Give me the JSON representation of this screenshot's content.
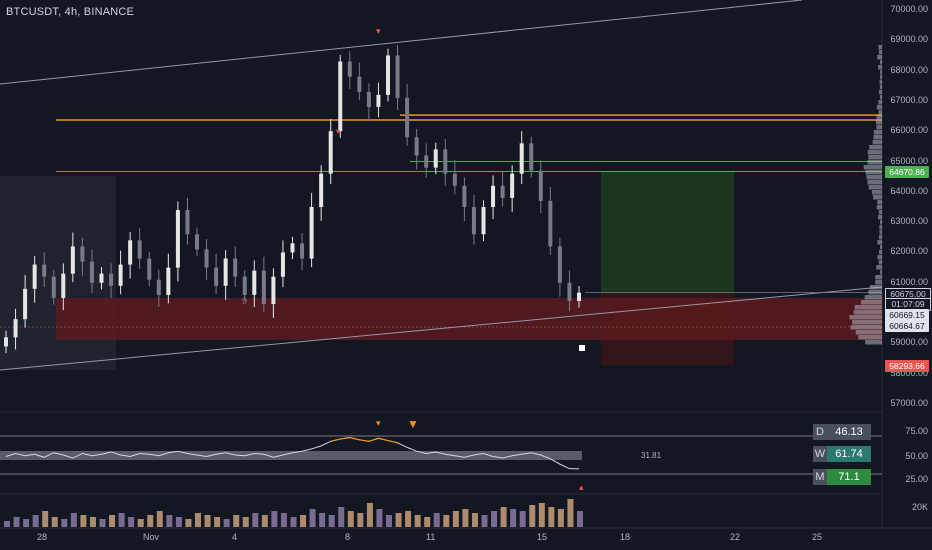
{
  "header": {
    "symbol_line": "BTCUSDT, 4h, BINANCE"
  },
  "price_axis": {
    "ticks": [
      "70000.00",
      "69000.00",
      "68000.00",
      "67000.00",
      "66000.00",
      "65000.00",
      "64000.00",
      "63000.00",
      "62000.00",
      "61000.00",
      "59000.00",
      "58000.00",
      "57000.00"
    ]
  },
  "tags": {
    "green_level": "64670.86",
    "current_price": "60675.00",
    "countdown": "01:07:09",
    "level_a": "60669.15",
    "level_b": "60664.67",
    "red_level": "58293.66"
  },
  "rsi_axis": {
    "ticks": [
      "75.00",
      "50.00",
      "25.00"
    ],
    "mid_label": "31.81"
  },
  "rsi_boxes": [
    {
      "key": "D",
      "value": "46.13",
      "color": "#4a4f5c"
    },
    {
      "key": "W",
      "value": "61.74",
      "color": "#2a7a6e"
    },
    {
      "key": "M",
      "value": "71.1",
      "color": "#2e8b3e"
    }
  ],
  "volume_axis": {
    "tick": "20K"
  },
  "time_axis": {
    "labels": [
      "28",
      "Nov",
      "4",
      "8",
      "11",
      "15",
      "18",
      "22",
      "25"
    ]
  },
  "markers": {
    "count_label": "9"
  },
  "colors": {
    "background": "#131722",
    "up_candle": "#e6e6e6",
    "down_candle": "#787b86",
    "orange_line": "#f7931a",
    "green_line": "#4caf50",
    "red_zone": "#5a1a1e",
    "green_zone": "#1e3a22",
    "rsi_line": "#cfd8dc"
  },
  "chart_data": {
    "type": "candlestick",
    "ylim": [
      56800,
      70200
    ],
    "orange_levels": [
      66370,
      66530
    ],
    "green_levels": [
      64670.86,
      65000
    ],
    "candles_close_path": [
      59200,
      59800,
      60800,
      61600,
      61200,
      60500,
      61300,
      62200,
      61700,
      61000,
      61300,
      60900,
      61600,
      62400,
      61800,
      61100,
      60600,
      61500,
      63400,
      62600,
      62100,
      61500,
      60900,
      61800,
      61200,
      60600,
      61400,
      60300,
      61200,
      62000,
      62300,
      61800,
      63500,
      64600,
      66000,
      68300,
      67800,
      67300,
      66800,
      67200,
      68500,
      67100,
      65800,
      65200,
      64800,
      65400,
      64600,
      64200,
      63500,
      62600,
      63500,
      64200,
      63800,
      64600,
      65600,
      64700,
      63700,
      62200,
      61000,
      60400,
      60675
    ],
    "volume_values": [
      3,
      5,
      4,
      6,
      8,
      5,
      4,
      7,
      6,
      5,
      4,
      6,
      7,
      5,
      4,
      6,
      8,
      6,
      5,
      4,
      7,
      6,
      5,
      4,
      6,
      5,
      7,
      6,
      8,
      7,
      5,
      6,
      9,
      7,
      6,
      10,
      8,
      7,
      12,
      9,
      6,
      7,
      8,
      6,
      5,
      7,
      6,
      8,
      9,
      7,
      6,
      8,
      10,
      9,
      8,
      11,
      12,
      10,
      9,
      14,
      8
    ],
    "rsi_values": [
      48,
      52,
      49,
      51,
      47,
      53,
      50,
      46,
      52,
      49,
      51,
      54,
      50,
      48,
      52,
      51,
      49,
      53,
      55,
      52,
      50,
      48,
      51,
      53,
      50,
      49,
      52,
      51,
      47,
      50,
      53,
      55,
      58,
      62,
      68,
      71,
      73,
      70,
      68,
      72,
      69,
      66,
      60,
      55,
      52,
      54,
      51,
      49,
      47,
      50,
      52,
      48,
      46,
      49,
      51,
      53,
      50,
      45,
      38,
      32,
      31.81
    ]
  }
}
